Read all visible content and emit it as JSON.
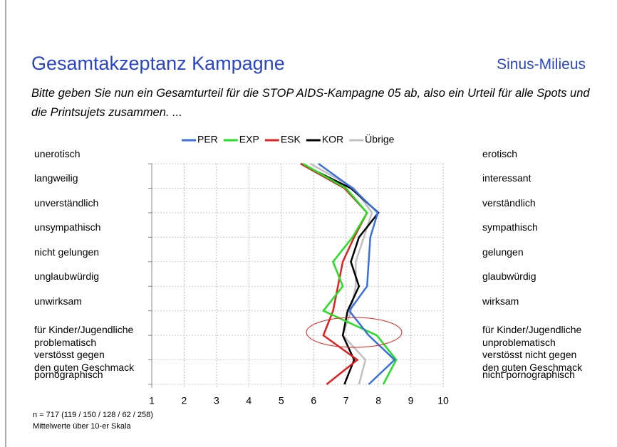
{
  "chart_data": {
    "type": "line",
    "title": "Gesamtakzeptanz Kampagne",
    "subtitle": "Sinus-Milieus",
    "question": "Bitte geben Sie nun ein Gesamturteil für die STOP AIDS-Kampagne 05 ab, also ein Urteil für alle Spots und die Printsujets zusammen. ...",
    "categories_left": [
      "unerotisch",
      "langweilig",
      "unverständlich",
      "unsympathisch",
      "nicht gelungen",
      "unglaubwürdig",
      "unwirksam",
      "für Kinder/Jugendliche\nproblematisch",
      "verstösst gegen\nden guten Geschmack",
      "pornographisch"
    ],
    "categories_right": [
      "erotisch",
      "interessant",
      "verständlich",
      "sympathisch",
      "gelungen",
      "glaubwürdig",
      "wirksam",
      "für Kinder/Jugendliche\nunproblematisch",
      "verstösst nicht gegen\nden guten Geschmack",
      "nicht pornographisch"
    ],
    "series": [
      {
        "name": "PER",
        "color": "#3a6fe0",
        "values": [
          6.15,
          7.2,
          7.98,
          7.75,
          7.7,
          7.65,
          7.1,
          7.7,
          8.5,
          7.7
        ]
      },
      {
        "name": "EXP",
        "color": "#22e022",
        "values": [
          5.67,
          7.0,
          7.65,
          7.2,
          6.6,
          6.9,
          6.3,
          7.95,
          8.55,
          8.15
        ]
      },
      {
        "name": "ESK",
        "color": "#e02020",
        "values": [
          5.6,
          6.95,
          7.65,
          7.25,
          6.9,
          6.75,
          6.6,
          6.3,
          7.35,
          6.4
        ]
      },
      {
        "name": "KOR",
        "color": "#000000",
        "values": [
          5.6,
          7.15,
          8.0,
          7.4,
          7.15,
          7.4,
          7.05,
          6.9,
          7.25,
          6.95
        ]
      },
      {
        "name": "Übrige",
        "color": "#c0c0c0",
        "values": [
          5.9,
          7.25,
          7.8,
          7.55,
          7.3,
          7.3,
          7.15,
          6.9,
          7.6,
          7.4
        ]
      }
    ],
    "xlim": [
      1,
      10
    ],
    "xticks": [
      1,
      2,
      3,
      4,
      5,
      6,
      7,
      8,
      9,
      10
    ],
    "grid": true,
    "footnotes": [
      "n = 717 (119 / 150 / 128 / 62 / 258)",
      "Mittelwerte über 10-er Skala"
    ]
  }
}
